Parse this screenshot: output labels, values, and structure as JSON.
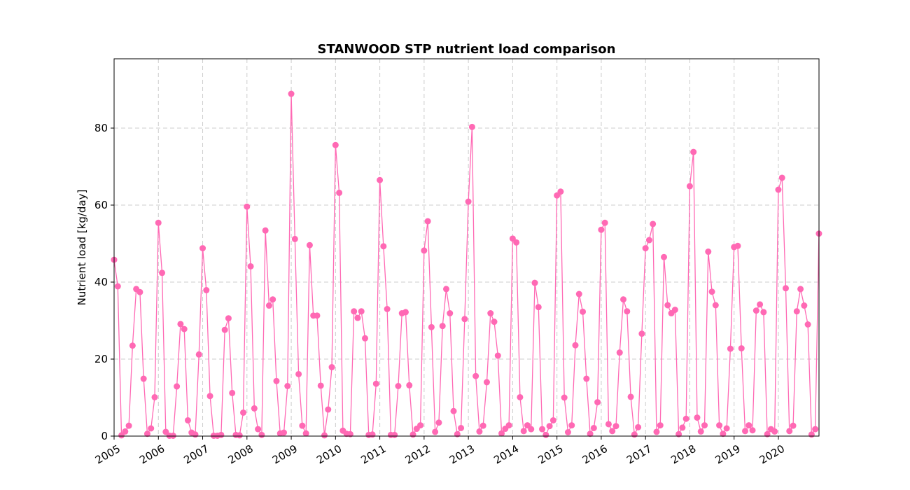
{
  "chart_data": {
    "type": "line",
    "title": "STANWOOD STP nutrient load comparison",
    "xlabel": "",
    "ylabel": "Nutrient load [kg/day]",
    "xlim": [
      2005.0,
      2020.917
    ],
    "ylim": [
      0,
      98
    ],
    "x_ticks": [
      2005,
      2006,
      2007,
      2008,
      2009,
      2010,
      2011,
      2012,
      2013,
      2014,
      2015,
      2016,
      2017,
      2018,
      2019,
      2020
    ],
    "x_tick_labels": [
      "2005",
      "2006",
      "2007",
      "2008",
      "2009",
      "2010",
      "2011",
      "2012",
      "2013",
      "2014",
      "2015",
      "2016",
      "2017",
      "2018",
      "2019",
      "2020"
    ],
    "y_ticks": [
      0,
      20,
      40,
      60,
      80
    ],
    "y_tick_labels": [
      "0",
      "20",
      "40",
      "60",
      "80"
    ],
    "grid": true,
    "color": "#ff69b4",
    "series": [
      {
        "x_start": 2005.0,
        "x_step": 0.08333,
        "values": [
          45.8,
          38.9,
          0.2,
          1.2,
          2.7,
          23.5,
          38.2,
          37.4,
          14.9,
          0.6,
          2.0,
          10.1,
          55.4,
          42.4,
          1.1,
          0.1,
          0.1,
          12.9,
          29.1,
          27.8,
          4.1,
          0.9,
          0.4,
          21.2,
          48.8,
          37.9,
          10.4,
          0.1,
          0.1,
          0.3,
          27.6,
          30.6,
          11.2,
          0.3,
          0.2,
          6.1,
          59.6,
          44.1,
          7.2,
          1.8,
          0.3,
          53.4,
          33.9,
          35.5,
          14.3,
          0.7,
          0.9,
          13.0,
          88.9,
          51.2,
          16.1,
          2.7,
          0.7,
          49.6,
          31.3,
          31.3,
          13.1,
          0.2,
          6.9,
          17.9,
          75.6,
          63.2,
          1.4,
          0.6,
          0.5,
          32.4,
          30.7,
          32.4,
          25.4,
          0.3,
          0.4,
          13.6,
          66.5,
          49.3,
          33.0,
          0.3,
          0.3,
          13.0,
          31.9,
          32.2,
          13.2,
          0.4,
          1.9,
          2.8,
          48.2,
          55.8,
          28.3,
          1.1,
          3.5,
          28.6,
          38.2,
          31.9,
          6.5,
          0.5,
          2.1,
          30.4,
          60.9,
          80.3,
          15.6,
          1.2,
          2.7,
          14.0,
          31.9,
          29.7,
          20.9,
          0.7,
          1.9,
          2.8,
          51.3,
          50.3,
          10.1,
          1.3,
          2.8,
          1.8,
          39.8,
          33.5,
          1.8,
          0.3,
          2.6,
          4.1,
          62.5,
          63.5,
          10.0,
          1.0,
          2.8,
          23.6,
          36.9,
          32.3,
          14.9,
          0.6,
          2.1,
          8.8,
          53.6,
          55.4,
          3.1,
          1.3,
          2.6,
          21.7,
          35.5,
          32.4,
          10.2,
          0.4,
          2.3,
          26.6,
          48.8,
          50.9,
          55.1,
          1.1,
          2.8,
          46.5,
          34.0,
          31.9,
          32.8,
          0.5,
          2.2,
          4.5,
          64.9,
          73.8,
          4.8,
          1.2,
          2.8,
          47.9,
          37.5,
          34.0,
          2.8,
          0.6,
          2.0,
          22.7,
          49.1,
          49.4,
          22.8,
          1.3,
          2.8,
          1.5,
          32.6,
          34.2,
          32.2,
          0.5,
          1.8,
          1.2,
          64.0,
          67.1,
          38.4,
          1.3,
          2.7,
          32.4,
          38.2,
          33.9,
          29.0,
          0.4,
          1.8,
          52.6
        ]
      }
    ]
  }
}
